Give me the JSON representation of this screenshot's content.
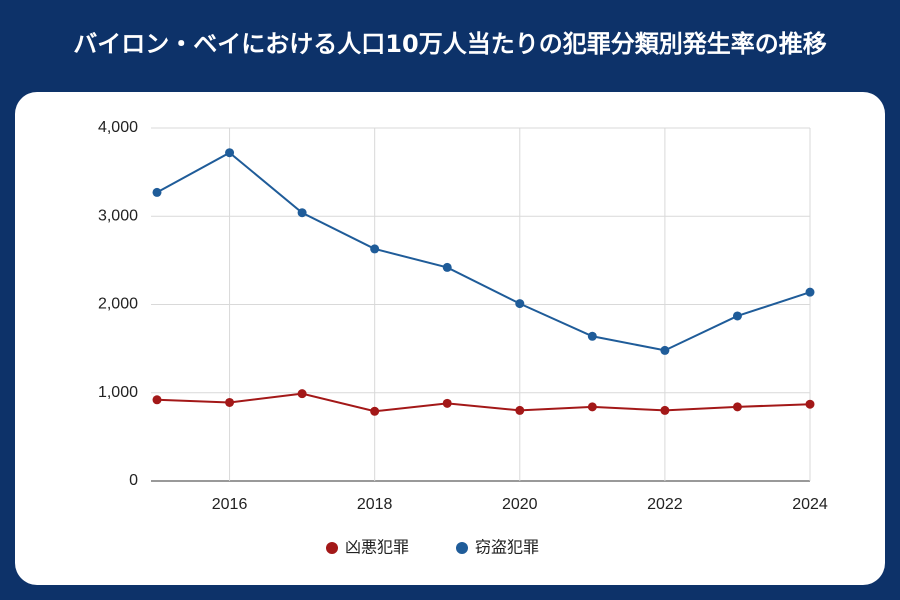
{
  "chart_data": {
    "type": "line",
    "title": "バイロン・ベイにおける人口10万人当たりの犯罪分類別発生率の推移",
    "x": [
      2015,
      2016,
      2017,
      2018,
      2019,
      2020,
      2021,
      2022,
      2023,
      2024
    ],
    "xlim": [
      2015,
      2024
    ],
    "xticks": [
      2016,
      2018,
      2020,
      2022,
      2024
    ],
    "ylim": [
      0,
      4000
    ],
    "yticks": [
      0,
      {
        "value": 1000,
        "label": "1,000"
      },
      {
        "value": 2000,
        "label": "2,000"
      },
      {
        "value": 3000,
        "label": "3,000"
      },
      {
        "value": 4000,
        "label": "4,000"
      }
    ],
    "grid": true,
    "legend": "bottom",
    "series": [
      {
        "name": "凶悪犯罪",
        "color": "#a31818",
        "values": [
          920,
          890,
          990,
          790,
          880,
          800,
          840,
          800,
          840,
          870
        ]
      },
      {
        "name": "窃盗犯罪",
        "color": "#1f5c99",
        "values": [
          3270,
          3720,
          3040,
          2630,
          2420,
          2010,
          1640,
          1480,
          1870,
          2140
        ]
      }
    ]
  }
}
